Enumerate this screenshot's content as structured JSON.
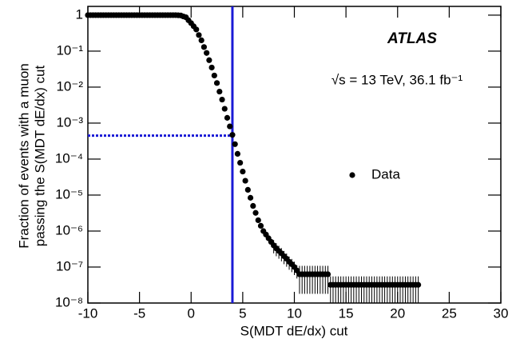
{
  "chart_data": {
    "type": "scatter",
    "xlabel": "S(MDT dE/dx) cut",
    "ylabel": [
      "Fraction of events with a muon",
      "passing the S(MDT dE/dx) cut"
    ],
    "annotations": [
      "ATLAS",
      "√s = 13 TeV, 36.1 fb⁻¹"
    ],
    "xlim": [
      -10,
      30
    ],
    "xticks": [
      -10,
      -5,
      0,
      5,
      10,
      15,
      20,
      25,
      30
    ],
    "ylim": [
      1e-08,
      1.75
    ],
    "yscale": "log",
    "yticks": [
      {
        "value": 1e-08,
        "label": "10⁻⁸"
      },
      {
        "value": 1e-07,
        "label": "10⁻⁷"
      },
      {
        "value": 1e-06,
        "label": "10⁻⁶"
      },
      {
        "value": 1e-05,
        "label": "10⁻⁵"
      },
      {
        "value": 0.0001,
        "label": "10⁻⁴"
      },
      {
        "value": 0.001,
        "label": "10⁻³"
      },
      {
        "value": 0.01,
        "label": "10⁻²"
      },
      {
        "value": 0.1,
        "label": "10⁻¹"
      },
      1
    ],
    "legend": "right",
    "vertical_line": {
      "x": 4,
      "color": "#1a1ad6"
    },
    "horizontal_line": {
      "y": 0.00045,
      "color": "#1a1ad6",
      "style": "dotted"
    },
    "x": [
      -10,
      -9.75,
      -9.5,
      -9.25,
      -9,
      -8.75,
      -8.5,
      -8.25,
      -8,
      -7.75,
      -7.5,
      -7.25,
      -7,
      -6.75,
      -6.5,
      -6.25,
      -6,
      -5.75,
      -5.5,
      -5.25,
      -5,
      -4.75,
      -4.5,
      -4.25,
      -4,
      -3.75,
      -3.5,
      -3.25,
      -3,
      -2.75,
      -2.5,
      -2.25,
      -2,
      -1.75,
      -1.5,
      -1.25,
      -1,
      -0.75,
      -0.5,
      -0.25,
      0,
      0.25,
      0.5,
      0.75,
      1,
      1.25,
      1.5,
      1.75,
      2,
      2.25,
      2.5,
      2.75,
      3,
      3.25,
      3.5,
      3.75,
      4,
      4.25,
      4.5,
      4.75,
      5,
      5.25,
      5.5,
      5.75,
      6,
      6.25,
      6.5,
      6.75,
      7,
      7.25,
      7.5,
      7.75,
      8,
      8.25,
      8.5,
      8.75,
      9,
      9.25,
      9.5,
      9.75,
      10,
      10.25,
      10.5,
      10.75,
      11,
      11.25,
      11.5,
      11.75,
      12,
      12.25,
      12.5,
      12.75,
      13,
      13.25,
      13.5,
      13.75,
      14,
      14.25,
      14.5,
      14.75,
      15,
      15.25,
      15.5,
      15.75,
      16,
      16.25,
      16.5,
      16.75,
      17,
      17.25,
      17.5,
      17.75,
      18,
      18.25,
      18.5,
      18.75,
      19,
      19.25,
      19.5,
      19.75,
      20,
      20.25,
      20.5,
      20.75,
      21,
      21.25,
      21.5,
      21.75,
      22
    ],
    "series": [
      {
        "name": "Data",
        "color": "#000000",
        "values": [
          1,
          1,
          1,
          1,
          1,
          1,
          1,
          1,
          1,
          1,
          1,
          1,
          1,
          1,
          1,
          1,
          1,
          1,
          1,
          1,
          1,
          1,
          1,
          1,
          1,
          1,
          1,
          1,
          1,
          1,
          1,
          1,
          1,
          1,
          1,
          0.99,
          0.98,
          0.92,
          0.87,
          0.72,
          0.6,
          0.49,
          0.4,
          0.28,
          0.2,
          0.13,
          0.089,
          0.056,
          0.035,
          0.021,
          0.013,
          0.0075,
          0.0045,
          0.0025,
          0.0014,
          0.00081,
          0.00047,
          0.00026,
          0.00014,
          7.9e-05,
          4.5e-05,
          2.5e-05,
          1.4e-05,
          8.4e-06,
          5e-06,
          3.2e-06,
          2e-06,
          1.4e-06,
          1e-06,
          8e-07,
          6.3e-07,
          5e-07,
          4e-07,
          3.3e-07,
          2.8e-07,
          2.4e-07,
          2e-07,
          1.7e-07,
          1.4e-07,
          1.2e-07,
          1e-07,
          8e-08,
          6.3e-08,
          6.3e-08,
          6.3e-08,
          6.3e-08,
          6.3e-08,
          6.3e-08,
          6.3e-08,
          6.3e-08,
          6.3e-08,
          6.3e-08,
          6.3e-08,
          6.3e-08,
          3.2e-08,
          3.2e-08,
          3.2e-08,
          3.2e-08,
          3.2e-08,
          3.2e-08,
          3.2e-08,
          3.2e-08,
          3.2e-08,
          3.2e-08,
          3.2e-08,
          3.2e-08,
          3.2e-08,
          3.2e-08,
          3.2e-08,
          3.2e-08,
          3.2e-08,
          3.2e-08,
          3.2e-08,
          3.2e-08,
          3.2e-08,
          3.2e-08,
          3.2e-08,
          3.2e-08,
          3.2e-08,
          3.2e-08,
          3.2e-08,
          3.2e-08,
          3.2e-08,
          3.2e-08,
          3.2e-08,
          3.2e-08,
          3.2e-08,
          3.2e-08,
          3.2e-08
        ],
        "errors": [
          null,
          null,
          null,
          null,
          null,
          null,
          null,
          null,
          null,
          null,
          null,
          null,
          null,
          null,
          null,
          null,
          null,
          null,
          null,
          null,
          null,
          null,
          null,
          null,
          null,
          null,
          null,
          null,
          null,
          null,
          null,
          null,
          null,
          null,
          null,
          null,
          null,
          null,
          null,
          null,
          null,
          null,
          null,
          null,
          null,
          null,
          null,
          null,
          null,
          null,
          null,
          null,
          null,
          null,
          null,
          null,
          null,
          null,
          null,
          null,
          null,
          null,
          null,
          null,
          null,
          null,
          null,
          null,
          null,
          null,
          null,
          null,
          1.6e-07,
          1.3e-07,
          1.1e-07,
          9.6e-08,
          8e-08,
          6.8e-08,
          5.6e-08,
          4.8e-08,
          4e-08,
          3.2e-08,
          4.5e-08,
          4.5e-08,
          4.5e-08,
          4.5e-08,
          4.5e-08,
          4.5e-08,
          4.5e-08,
          4.5e-08,
          4.5e-08,
          4.5e-08,
          4.5e-08,
          4.5e-08,
          2.3e-08,
          2.3e-08,
          2.3e-08,
          2.3e-08,
          2.3e-08,
          2.3e-08,
          2.3e-08,
          2.3e-08,
          2.3e-08,
          2.3e-08,
          2.3e-08,
          2.3e-08,
          2.3e-08,
          2.3e-08,
          2.3e-08,
          2.3e-08,
          2.3e-08,
          2.3e-08,
          2.3e-08,
          2.3e-08,
          2.3e-08,
          2.3e-08,
          2.3e-08,
          2.3e-08,
          2.3e-08,
          2.3e-08,
          2.3e-08,
          2.3e-08,
          2.3e-08,
          2.3e-08,
          2.3e-08,
          2.3e-08,
          2.3e-08,
          2.3e-08,
          2.3e-08
        ]
      }
    ]
  }
}
